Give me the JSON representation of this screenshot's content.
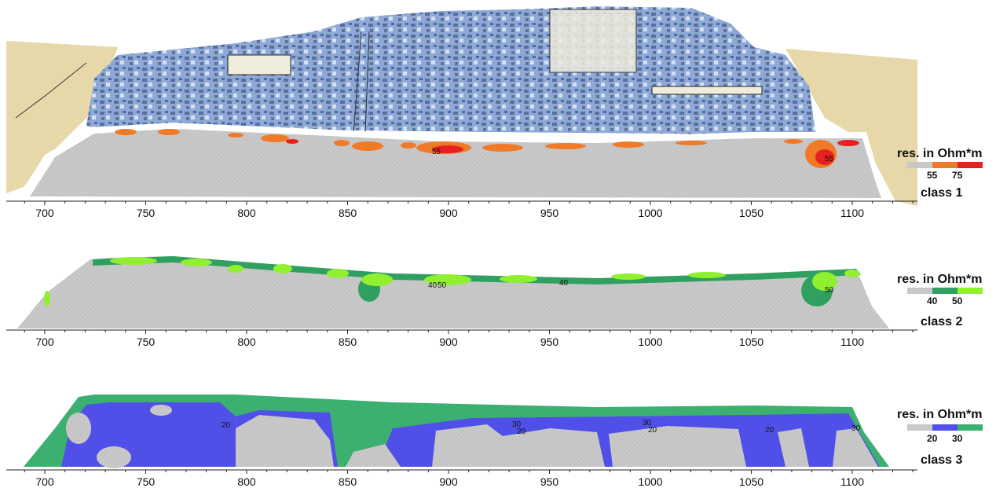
{
  "chart_data": [
    {
      "type": "heatmap",
      "panel": "class 1",
      "class_label": "class 1",
      "x_ticks": [
        700,
        750,
        800,
        850,
        900,
        950,
        1000,
        1050,
        1100
      ],
      "xlim": [
        690,
        1130
      ],
      "legend": {
        "title": "res. in Ohm*m",
        "thresholds": [
          "55",
          "75"
        ],
        "colors": [
          "#c8c8c8",
          "#f07a28",
          "#e82020"
        ]
      },
      "contour_labels": [
        "55",
        "55"
      ],
      "background_color": "#c8c8c8",
      "surface_texture_colors": [
        "#6a8fc8",
        "#e8dcb0"
      ]
    },
    {
      "type": "heatmap",
      "panel": "class 2",
      "class_label": "class 2",
      "x_ticks": [
        700,
        750,
        800,
        850,
        900,
        950,
        1000,
        1050,
        1100
      ],
      "xlim": [
        690,
        1130
      ],
      "legend": {
        "title": "res. in Ohm*m",
        "thresholds": [
          "40",
          "50"
        ],
        "colors": [
          "#c8c8c8",
          "#2fa060",
          "#90f030"
        ]
      },
      "contour_labels": [
        "40",
        "50",
        "40",
        "50"
      ],
      "background_color": "#c8c8c8"
    },
    {
      "type": "heatmap",
      "panel": "class 3",
      "class_label": "class 3",
      "x_ticks": [
        700,
        750,
        800,
        850,
        900,
        950,
        1000,
        1050,
        1100
      ],
      "xlim": [
        690,
        1130
      ],
      "legend": {
        "title": "res. in Ohm*m",
        "thresholds": [
          "20",
          "30"
        ],
        "colors": [
          "#c8c8c8",
          "#5050e8",
          "#3cb070"
        ]
      },
      "contour_labels": [
        "20",
        "30",
        "20",
        "30",
        "20",
        "20",
        "30"
      ],
      "background_color": "#c8c8c8"
    }
  ]
}
